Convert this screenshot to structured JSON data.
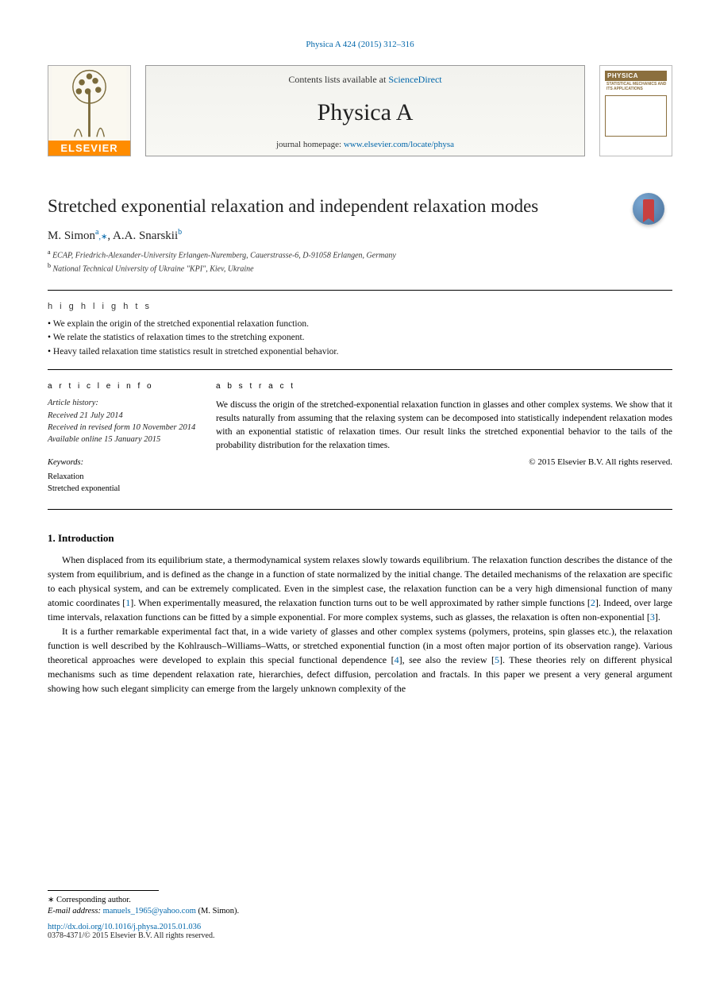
{
  "citation": "Physica A 424 (2015) 312–316",
  "header": {
    "contents_prefix": "Contents lists available at ",
    "sciencedirect": "ScienceDirect",
    "journal": "Physica A",
    "homepage_prefix": "journal homepage: ",
    "homepage_url": "www.elsevier.com/locate/physa",
    "elsevier_label": "ELSEVIER",
    "cover_title": "PHYSICA",
    "cover_sub": "STATISTICAL MECHANICS AND ITS APPLICATIONS"
  },
  "article": {
    "title": "Stretched exponential relaxation and independent relaxation modes",
    "authors": [
      {
        "name": "M. Simon",
        "marker": "a",
        "corresponding": true
      },
      {
        "name": "A.A. Snarskii",
        "marker": "b",
        "corresponding": false
      }
    ],
    "affiliations": [
      {
        "marker": "a",
        "text": "ECAP, Friedrich-Alexander-University Erlangen-Nuremberg, Cauerstrasse-6, D-91058 Erlangen, Germany"
      },
      {
        "marker": "b",
        "text": "National Technical University of Ukraine \"KPI\", Kiev, Ukraine"
      }
    ]
  },
  "highlights": {
    "heading": "h i g h l i g h t s",
    "items": [
      "We explain the origin of the stretched exponential relaxation function.",
      "We relate the statistics of relaxation times to the stretching exponent.",
      "Heavy tailed relaxation time statistics result in stretched exponential behavior."
    ]
  },
  "article_info": {
    "heading": "a r t i c l e   i n f o",
    "history": [
      "Article history:",
      "Received 21 July 2014",
      "Received in revised form 10 November 2014",
      "Available online 15 January 2015"
    ],
    "keywords_head": "Keywords:",
    "keywords": [
      "Relaxation",
      "Stretched exponential"
    ]
  },
  "abstract": {
    "heading": "a b s t r a c t",
    "text": "We discuss the origin of the stretched-exponential relaxation function in glasses and other complex systems. We show that it results naturally from assuming that the relaxing system can be decomposed into statistically independent relaxation modes with an exponential statistic of relaxation times. Our result links the stretched exponential behavior to the tails of the probability distribution for the relaxation times.",
    "copyright": "© 2015 Elsevier B.V. All rights reserved."
  },
  "introduction": {
    "number": "1.",
    "title": "Introduction",
    "paragraphs": [
      "When displaced from its equilibrium state, a thermodynamical system relaxes slowly towards equilibrium. The relaxation function describes the distance of the system from equilibrium, and is defined as the change in a function of state normalized by the initial change. The detailed mechanisms of the relaxation are specific to each physical system, and can be extremely complicated. Even in the simplest case, the relaxation function can be a very high dimensional function of many atomic coordinates [|1|]. When experimentally measured, the relaxation function turns out to be well approximated by rather simple functions [|2|]. Indeed, over large time intervals, relaxation functions can be fitted by a simple exponential. For more complex systems, such as glasses, the relaxation is often non-exponential [|3|].",
      "It is a further remarkable experimental fact that, in a wide variety of glasses and other complex systems (polymers, proteins, spin glasses etc.), the relaxation function is well described by the Kohlrausch–Williams–Watts, or stretched exponential function (in a most often major portion of its observation range). Various theoretical approaches were developed to explain this special functional dependence [|4|], see also the review [|5|]. These theories rely on different physical mechanisms such as time dependent relaxation rate, hierarchies, defect diffusion, percolation and fractals. In this paper we present a very general argument showing how such elegant simplicity can emerge from the largely unknown complexity of the"
    ]
  },
  "footer": {
    "corresponding_label": "Corresponding author.",
    "email_label": "E-mail address:",
    "email": "manuels_1965@yahoo.com",
    "email_tail": "(M. Simon).",
    "doi_url": "http://dx.doi.org/10.1016/j.physa.2015.01.036",
    "doi_meta": "0378-4371/© 2015 Elsevier B.V. All rights reserved."
  },
  "colors": {
    "link": "#0066aa",
    "elsevier_orange": "#ff8c00",
    "cover_brown": "#8b6f3e",
    "badge_bg": "#496f97",
    "ribbon": "#c84040"
  }
}
